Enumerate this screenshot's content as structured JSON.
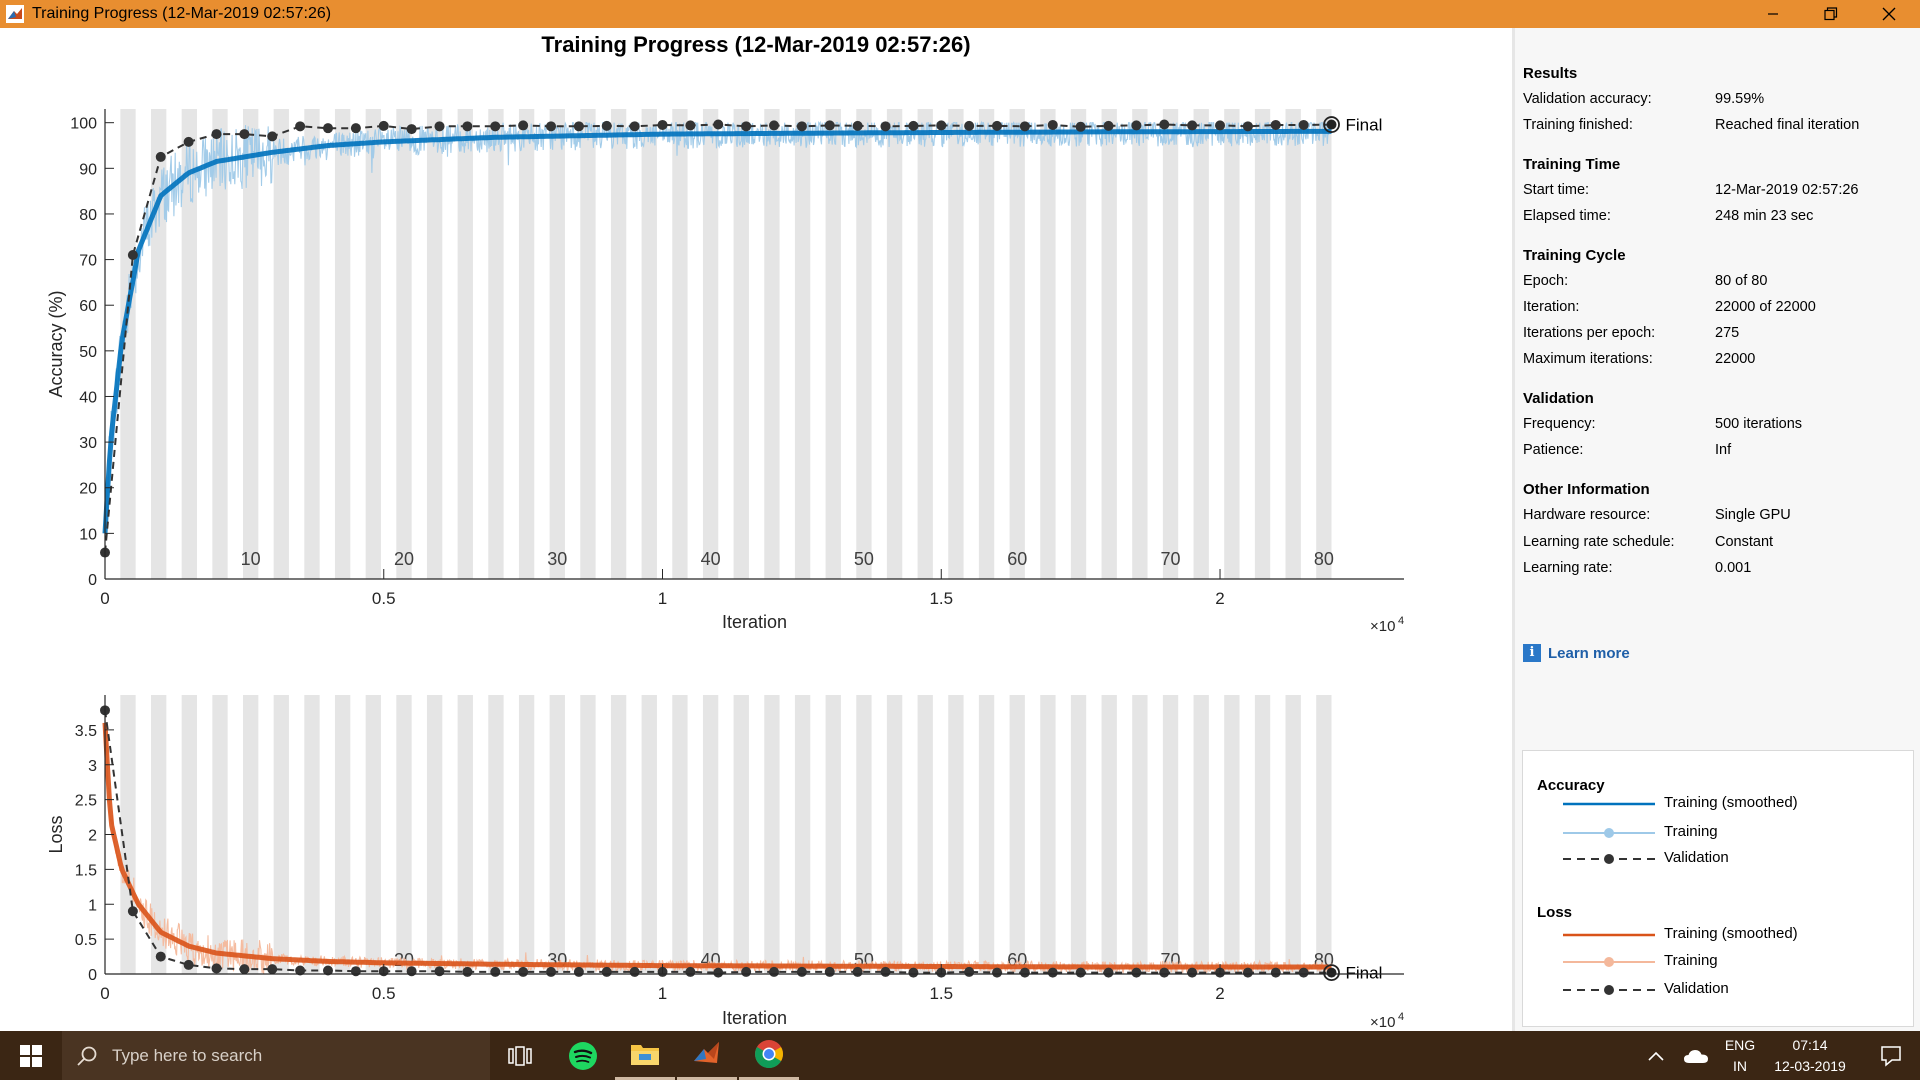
{
  "window": {
    "title": "Training Progress (12-Mar-2019 02:57:26)",
    "controls": {
      "minimize": "minimize",
      "maximize": "maximize",
      "close": "close"
    }
  },
  "main_title": "Training Progress (12-Mar-2019 02:57:26)",
  "info": {
    "results": {
      "title": "Results",
      "rows": [
        {
          "label": "Validation accuracy:",
          "value": "99.59%"
        },
        {
          "label": "Training finished:",
          "value": "Reached final iteration"
        }
      ]
    },
    "training_time": {
      "title": "Training Time",
      "rows": [
        {
          "label": "Start time:",
          "value": "12-Mar-2019 02:57:26"
        },
        {
          "label": "Elapsed time:",
          "value": "248 min 23 sec"
        }
      ]
    },
    "training_cycle": {
      "title": "Training Cycle",
      "rows": [
        {
          "label": "Epoch:",
          "value": "80 of 80"
        },
        {
          "label": "Iteration:",
          "value": "22000 of 22000"
        },
        {
          "label": "Iterations per epoch:",
          "value": "275"
        },
        {
          "label": "Maximum iterations:",
          "value": "22000"
        }
      ]
    },
    "validation": {
      "title": "Validation",
      "rows": [
        {
          "label": "Frequency:",
          "value": "500 iterations"
        },
        {
          "label": "Patience:",
          "value": "Inf"
        }
      ]
    },
    "other": {
      "title": "Other Information",
      "rows": [
        {
          "label": "Hardware resource:",
          "value": "Single GPU"
        },
        {
          "label": "Learning rate schedule:",
          "value": "Constant"
        },
        {
          "label": "Learning rate:",
          "value": "0.001"
        }
      ]
    },
    "learn_more": "Learn more"
  },
  "legend": {
    "accuracy_title": "Accuracy",
    "loss_title": "Loss",
    "items": {
      "acc_smoothed": "Training (smoothed)",
      "acc_training": "Training",
      "acc_validation": "Validation",
      "loss_smoothed": "Training (smoothed)",
      "loss_training": "Training",
      "loss_validation": "Validation"
    }
  },
  "colors": {
    "accuracy_smoothed": "#0072bd",
    "accuracy_raw": "#9ec9e8",
    "loss_smoothed": "#d95319",
    "loss_raw": "#f4b89b",
    "validation": "#333333",
    "epoch_band": "#e5e5e5",
    "titlebar": "#e88e30",
    "taskbar": "#3b2614"
  },
  "chart_data": [
    {
      "type": "line",
      "ylabel": "Accuracy (%)",
      "xlabel": "Iteration",
      "x_exponent_label": "×10",
      "x_exponent": "4",
      "x_range": [
        0,
        23300
      ],
      "y_range": [
        0,
        103
      ],
      "x_ticks": [
        0,
        5000,
        10000,
        15000,
        20000
      ],
      "x_tick_labels": [
        "0",
        "0.5",
        "1",
        "1.5",
        "2"
      ],
      "y_ticks": [
        0,
        10,
        20,
        30,
        40,
        50,
        60,
        70,
        80,
        90,
        100
      ],
      "y_tick_labels": [
        "0",
        "10",
        "20",
        "30",
        "40",
        "50",
        "60",
        "70",
        "80",
        "90",
        "100"
      ],
      "epoch_labels": [
        "10",
        "20",
        "30",
        "40",
        "50",
        "60",
        "70",
        "80"
      ],
      "epoch_label_values": [
        10,
        20,
        30,
        40,
        50,
        60,
        70,
        80
      ],
      "iterations_per_epoch": 275,
      "final_label": "Final",
      "final_point": {
        "x": 22000,
        "y": 99.59
      },
      "series": [
        {
          "name": "Training (smoothed)",
          "x": [
            0,
            100,
            300,
            600,
            1000,
            1500,
            2000,
            3000,
            4000,
            5000,
            7000,
            10000,
            14000,
            18000,
            22000
          ],
          "y": [
            10,
            30,
            52,
            72,
            84,
            89,
            91.5,
            93.5,
            95,
            95.8,
            96.8,
            97.5,
            97.8,
            98,
            98.1
          ]
        },
        {
          "name": "Validation",
          "x": [
            0,
            500,
            1000,
            1500,
            2000,
            2500,
            3000,
            3500,
            4000,
            4500,
            5000,
            5500,
            6000,
            6500,
            7000,
            7500,
            8000,
            8500,
            9000,
            9500,
            10000,
            10500,
            11000,
            11500,
            12000,
            12500,
            13000,
            13500,
            14000,
            14500,
            15000,
            15500,
            16000,
            16500,
            17000,
            17500,
            18000,
            18500,
            19000,
            19500,
            20000,
            20500,
            21000,
            21500,
            22000
          ],
          "y": [
            5.8,
            71,
            92.5,
            95.8,
            97.5,
            97.5,
            97,
            99.2,
            98.8,
            98.8,
            99.3,
            98.6,
            99.2,
            99.2,
            99.2,
            99.4,
            99.2,
            99.2,
            99.3,
            99.2,
            99.5,
            99.4,
            99.6,
            99.2,
            99.4,
            99.2,
            99.4,
            99.3,
            99.2,
            99.3,
            99.4,
            99.3,
            99.3,
            99.2,
            99.5,
            99.1,
            99.3,
            99.4,
            99.6,
            99.4,
            99.4,
            99.2,
            99.5,
            99.5,
            99.59
          ]
        }
      ]
    },
    {
      "type": "line",
      "ylabel": "Loss",
      "xlabel": "Iteration",
      "x_exponent_label": "×10",
      "x_exponent": "4",
      "x_range": [
        0,
        23300
      ],
      "y_range": [
        0,
        4.0
      ],
      "x_ticks": [
        0,
        5000,
        10000,
        15000,
        20000
      ],
      "x_tick_labels": [
        "0",
        "0.5",
        "1",
        "1.5",
        "2"
      ],
      "y_ticks": [
        0,
        0.5,
        1,
        1.5,
        2,
        2.5,
        3,
        3.5
      ],
      "y_tick_labels": [
        "0",
        "0.5",
        "1",
        "1.5",
        "2",
        "2.5",
        "3",
        "3.5"
      ],
      "epoch_labels": [
        "20",
        "30",
        "40",
        "50",
        "60",
        "70",
        "80"
      ],
      "epoch_label_values": [
        20,
        30,
        40,
        50,
        60,
        70,
        80
      ],
      "iterations_per_epoch": 275,
      "final_label": "Final",
      "final_point": {
        "x": 22000,
        "y": 0.02
      },
      "series": [
        {
          "name": "Training (smoothed)",
          "x": [
            0,
            100,
            300,
            600,
            1000,
            1500,
            2000,
            3000,
            4000,
            5000,
            7000,
            10000,
            14000,
            18000,
            22000
          ],
          "y": [
            3.6,
            2.2,
            1.5,
            1.0,
            0.6,
            0.4,
            0.3,
            0.22,
            0.18,
            0.16,
            0.14,
            0.12,
            0.11,
            0.1,
            0.1
          ]
        },
        {
          "name": "Validation",
          "x": [
            0,
            500,
            1000,
            1500,
            2000,
            2500,
            3000,
            3500,
            4000,
            4500,
            5000,
            5500,
            6000,
            6500,
            7000,
            7500,
            8000,
            8500,
            9000,
            9500,
            10000,
            10500,
            11000,
            11500,
            12000,
            12500,
            13000,
            13500,
            14000,
            14500,
            15000,
            15500,
            16000,
            16500,
            17000,
            17500,
            18000,
            18500,
            19000,
            19500,
            20000,
            20500,
            21000,
            21500,
            22000
          ],
          "y": [
            3.78,
            0.9,
            0.25,
            0.13,
            0.08,
            0.07,
            0.07,
            0.05,
            0.05,
            0.04,
            0.04,
            0.04,
            0.04,
            0.03,
            0.03,
            0.03,
            0.03,
            0.03,
            0.03,
            0.03,
            0.03,
            0.03,
            0.02,
            0.03,
            0.03,
            0.03,
            0.03,
            0.03,
            0.03,
            0.02,
            0.02,
            0.03,
            0.02,
            0.02,
            0.02,
            0.02,
            0.02,
            0.02,
            0.02,
            0.02,
            0.02,
            0.02,
            0.02,
            0.02,
            0.02
          ]
        }
      ]
    }
  ],
  "taskbar": {
    "search_placeholder": "Type here to search",
    "language_top": "ENG",
    "language_bottom": "IN",
    "time": "07:14",
    "date": "12-03-2019",
    "icons": [
      "start-icon",
      "search-icon",
      "task-view-icon",
      "spotify-icon",
      "file-explorer-icon",
      "matlab-icon",
      "chrome-icon",
      "chevron-up-icon",
      "onedrive-icon",
      "notification-icon"
    ]
  }
}
